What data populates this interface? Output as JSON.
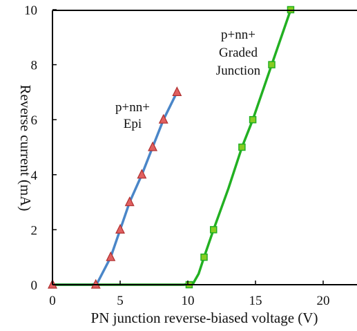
{
  "chart_data": {
    "type": "line",
    "title": "",
    "xlabel": "PN junction reverse-biased voltage (V)",
    "ylabel": "Reverse current (mA)",
    "xlim": [
      0,
      22
    ],
    "ylim": [
      0,
      10
    ],
    "xticks": [
      0,
      5,
      10,
      15,
      20
    ],
    "yticks": [
      0,
      2,
      4,
      6,
      8,
      10
    ],
    "grid": false,
    "series": [
      {
        "annotation": [
          "p+nn+",
          "Epi"
        ],
        "color": "#4a86c8",
        "marker": "triangle",
        "marker_fill": "#e06060",
        "marker_edge": "#b03030",
        "line": [
          [
            0,
            0
          ],
          [
            2.9,
            0
          ],
          [
            3.3,
            0.05
          ],
          [
            4.3,
            1.0
          ],
          [
            5.0,
            2.0
          ],
          [
            5.7,
            3.0
          ],
          [
            6.6,
            4.0
          ],
          [
            7.4,
            5.0
          ],
          [
            8.2,
            6.0
          ],
          [
            9.2,
            7.0
          ]
        ],
        "points": [
          [
            0,
            0
          ],
          [
            3.2,
            0
          ],
          [
            4.3,
            1.0
          ],
          [
            5.0,
            2.0
          ],
          [
            5.7,
            3.0
          ],
          [
            6.6,
            4.0
          ],
          [
            7.4,
            5.0
          ],
          [
            8.2,
            6.0
          ],
          [
            9.2,
            7.0
          ]
        ]
      },
      {
        "annotation": [
          "p+nn+",
          "Graded",
          "Junction"
        ],
        "color": "#22b022",
        "marker": "square",
        "marker_fill": "#88cc22",
        "marker_edge": "#22b022",
        "line": [
          [
            0,
            0
          ],
          [
            9.7,
            0
          ],
          [
            10.4,
            0.05
          ],
          [
            10.8,
            0.4
          ],
          [
            11.2,
            1.0
          ],
          [
            11.9,
            2.0
          ],
          [
            13.0,
            3.5
          ],
          [
            14.0,
            5.0
          ],
          [
            14.8,
            6.0
          ],
          [
            16.2,
            8.0
          ],
          [
            17.6,
            10.0
          ]
        ],
        "points": [
          [
            10.1,
            0
          ],
          [
            11.2,
            1.0
          ],
          [
            11.9,
            2.0
          ],
          [
            14.0,
            5.0
          ],
          [
            14.8,
            6.0
          ],
          [
            16.2,
            8.0
          ],
          [
            17.6,
            10.0
          ]
        ]
      }
    ]
  }
}
